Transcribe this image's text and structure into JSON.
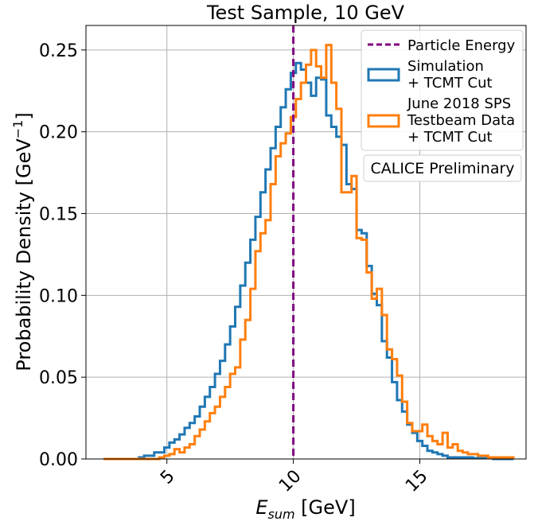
{
  "chart_data": {
    "type": "histogram",
    "title": "Test Sample, 10 GeV",
    "xlabel_main": "E",
    "xlabel_sub": "sum",
    "xlabel_unit": " [GeV]",
    "ylabel_main": "Probability Density [GeV",
    "ylabel_sup": "−1",
    "ylabel_end": "]",
    "xlim": [
      1.8,
      19.2
    ],
    "ylim": [
      0,
      0.265
    ],
    "xticks": [
      5,
      10,
      15
    ],
    "xtick_labels": [
      "5",
      "10",
      "15"
    ],
    "yticks": [
      0.0,
      0.05,
      0.1,
      0.15,
      0.2,
      0.25
    ],
    "ytick_labels": [
      "0.00",
      "0.05",
      "0.10",
      "0.15",
      "0.20",
      "0.25"
    ],
    "grid": true,
    "legend_position": "top-right",
    "bin_edges_start": 2.5,
    "bin_width": 0.2,
    "series": [
      {
        "name": "Simulation\n+ TCMT Cut",
        "color": "#1f77b4",
        "values": [
          0,
          0,
          0,
          0,
          0,
          0,
          0,
          0.001,
          0.002,
          0.002,
          0.004,
          0.004,
          0.007,
          0.01,
          0.012,
          0.015,
          0.019,
          0.022,
          0.026,
          0.032,
          0.038,
          0.044,
          0.052,
          0.06,
          0.07,
          0.081,
          0.093,
          0.106,
          0.12,
          0.134,
          0.148,
          0.163,
          0.177,
          0.19,
          0.203,
          0.215,
          0.226,
          0.236,
          0.242,
          0.238,
          0.23,
          0.222,
          0.233,
          0.232,
          0.21,
          0.203,
          0.197,
          0.192,
          0.168,
          0.165,
          0.14,
          0.138,
          0.118,
          0.101,
          0.094,
          0.072,
          0.062,
          0.047,
          0.036,
          0.029,
          0.021,
          0.016,
          0.011,
          0.008,
          0.005,
          0.004,
          0.003,
          0.002,
          0.001,
          0.001,
          0.001,
          0.001,
          0.001,
          0.0005,
          0.0005,
          0.0005,
          0.0005,
          0,
          0,
          0,
          0
        ]
      },
      {
        "name": "June 2018 SPS\nTestbeam Data\n+ TCMT Cut",
        "color": "#ff7f0e",
        "values": [
          0,
          0,
          0,
          0,
          0,
          0,
          0,
          0,
          0,
          0,
          0,
          0.001,
          0.002,
          0.003,
          0.006,
          0.004,
          0.007,
          0.009,
          0.014,
          0.018,
          0.023,
          0.028,
          0.032,
          0.038,
          0.044,
          0.052,
          0.056,
          0.073,
          0.085,
          0.104,
          0.127,
          0.138,
          0.146,
          0.168,
          0.185,
          0.193,
          0.199,
          0.209,
          0.22,
          0.23,
          0.241,
          0.25,
          0.24,
          0.233,
          0.253,
          0.23,
          0.214,
          0.163,
          0.163,
          0.173,
          0.135,
          0.134,
          0.114,
          0.098,
          0.104,
          0.088,
          0.067,
          0.061,
          0.051,
          0.035,
          0.022,
          0.017,
          0.017,
          0.021,
          0.014,
          0.011,
          0.009,
          0.016,
          0.007,
          0.009,
          0.005,
          0.004,
          0.003,
          0.003,
          0.002,
          0.002,
          0.001,
          0.001,
          0.001,
          0.001,
          0.001
        ]
      }
    ],
    "reference_line": {
      "name": "Particle Energy",
      "x": 10,
      "color": "#800080"
    },
    "annotation": "CALICE Preliminary"
  }
}
